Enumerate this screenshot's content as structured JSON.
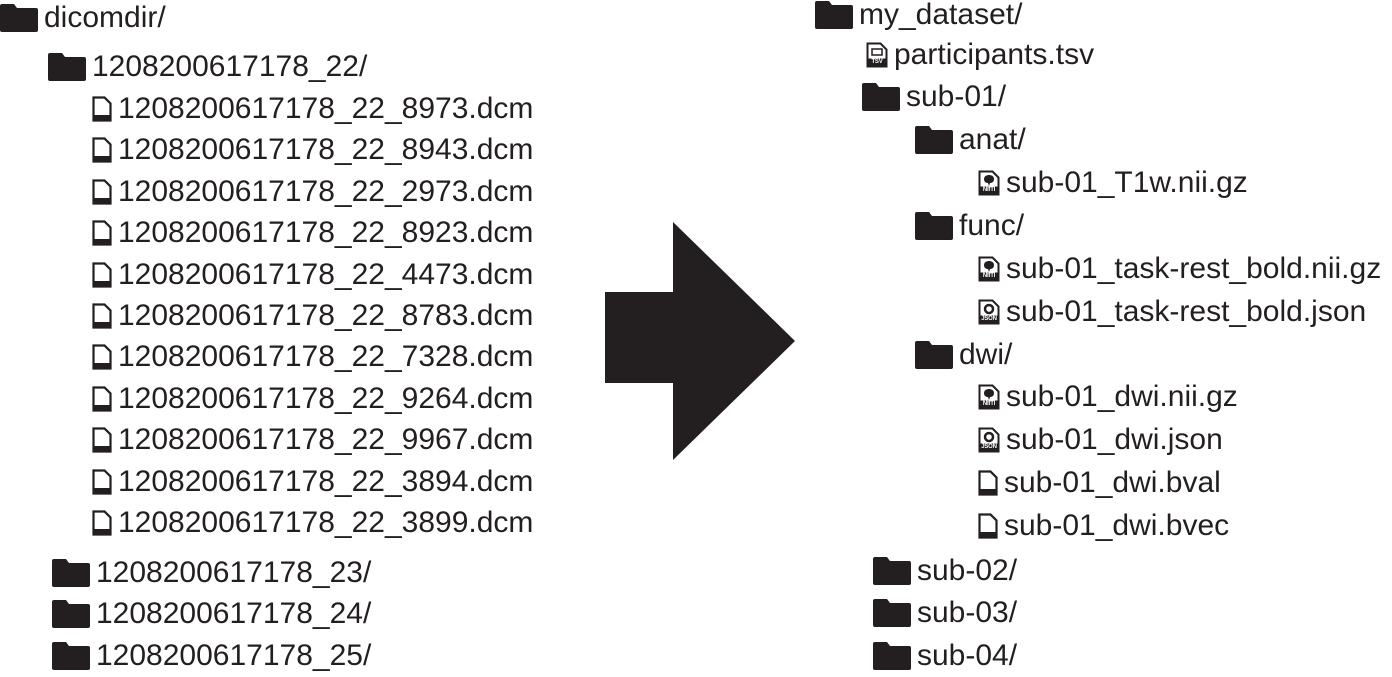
{
  "source_tree": {
    "items": [
      {
        "label": "dicomdir/",
        "icon": "folder-icon"
      },
      {
        "label": "1208200617178_22/",
        "icon": "folder-icon"
      },
      {
        "label": "1208200617178_22_8973.dcm",
        "icon": "file-icon"
      },
      {
        "label": "1208200617178_22_8943.dcm",
        "icon": "file-icon"
      },
      {
        "label": "1208200617178_22_2973.dcm",
        "icon": "file-icon"
      },
      {
        "label": "1208200617178_22_8923.dcm",
        "icon": "file-icon"
      },
      {
        "label": "1208200617178_22_4473.dcm",
        "icon": "file-icon"
      },
      {
        "label": "1208200617178_22_8783.dcm",
        "icon": "file-icon"
      },
      {
        "label": "1208200617178_22_7328.dcm",
        "icon": "file-icon"
      },
      {
        "label": "1208200617178_22_9264.dcm",
        "icon": "file-icon"
      },
      {
        "label": "1208200617178_22_9967.dcm",
        "icon": "file-icon"
      },
      {
        "label": "1208200617178_22_3894.dcm",
        "icon": "file-icon"
      },
      {
        "label": "1208200617178_22_3899.dcm",
        "icon": "file-icon"
      },
      {
        "label": "1208200617178_23/",
        "icon": "folder-icon"
      },
      {
        "label": "1208200617178_24/",
        "icon": "folder-icon"
      },
      {
        "label": "1208200617178_25/",
        "icon": "folder-icon"
      }
    ]
  },
  "target_tree": {
    "items": [
      {
        "label": "my_dataset/",
        "icon": "folder-icon"
      },
      {
        "label": "participants.tsv",
        "icon": "tsv-file-icon",
        "badge": "TSV"
      },
      {
        "label": "sub-01/",
        "icon": "folder-icon"
      },
      {
        "label": "anat/",
        "icon": "folder-icon"
      },
      {
        "label": "sub-01_T1w.nii.gz",
        "icon": "nifti-file-icon",
        "badge": "NIfTI"
      },
      {
        "label": "func/",
        "icon": "folder-icon"
      },
      {
        "label": "sub-01_task-rest_bold.nii.gz",
        "icon": "nifti-file-icon",
        "badge": "NIfTI"
      },
      {
        "label": "sub-01_task-rest_bold.json",
        "icon": "json-file-icon",
        "badge": "JSON"
      },
      {
        "label": "dwi/",
        "icon": "folder-icon"
      },
      {
        "label": "sub-01_dwi.nii.gz",
        "icon": "nifti-file-icon",
        "badge": "NIfTI"
      },
      {
        "label": "sub-01_dwi.json",
        "icon": "json-file-icon",
        "badge": "JSON"
      },
      {
        "label": "sub-01_dwi.bval",
        "icon": "file-icon"
      },
      {
        "label": "sub-01_dwi.bvec",
        "icon": "file-icon"
      },
      {
        "label": "sub-02/",
        "icon": "folder-icon"
      },
      {
        "label": "sub-03/",
        "icon": "folder-icon"
      },
      {
        "label": "sub-04/",
        "icon": "folder-icon"
      }
    ]
  },
  "arrow": {
    "icon": "right-arrow-icon",
    "color": "#231f20"
  }
}
